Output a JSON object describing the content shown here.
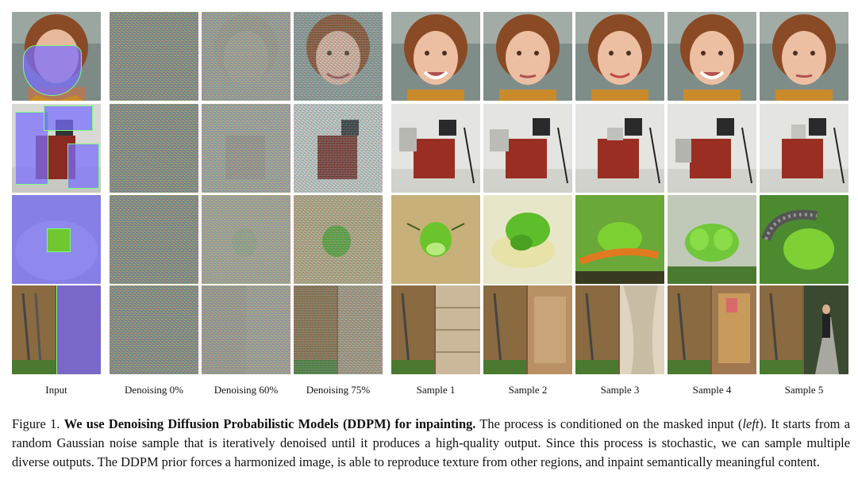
{
  "columns": [
    "Input",
    "Denoising 0%",
    "Denoising 60%",
    "Denoising 75%",
    "Sample 1",
    "Sample 2",
    "Sample 3",
    "Sample 4",
    "Sample 5"
  ],
  "rows": [
    "face",
    "lab-equipment",
    "green-insect",
    "storage-room"
  ],
  "caption": {
    "figure_label": "Figure 1.",
    "bold_title": "We use Denoising Diffusion Probabilistic Models (DDPM) for inpainting.",
    "text_1": " The process is conditioned on the masked input (",
    "italic": "left",
    "text_2": "). It starts from a random Gaussian noise sample that is iteratively denoised until it produces a high-quality output. Since this process is stochastic, we can sample multiple diverse outputs. The DDPM prior forces a harmonized image, is able to reproduce texture from other regions, and inpaint semantically meaningful content."
  },
  "colors": {
    "mask": "#786EFF",
    "mask_border": "#7CFC7C",
    "noise_base": "#8A8A8A"
  }
}
